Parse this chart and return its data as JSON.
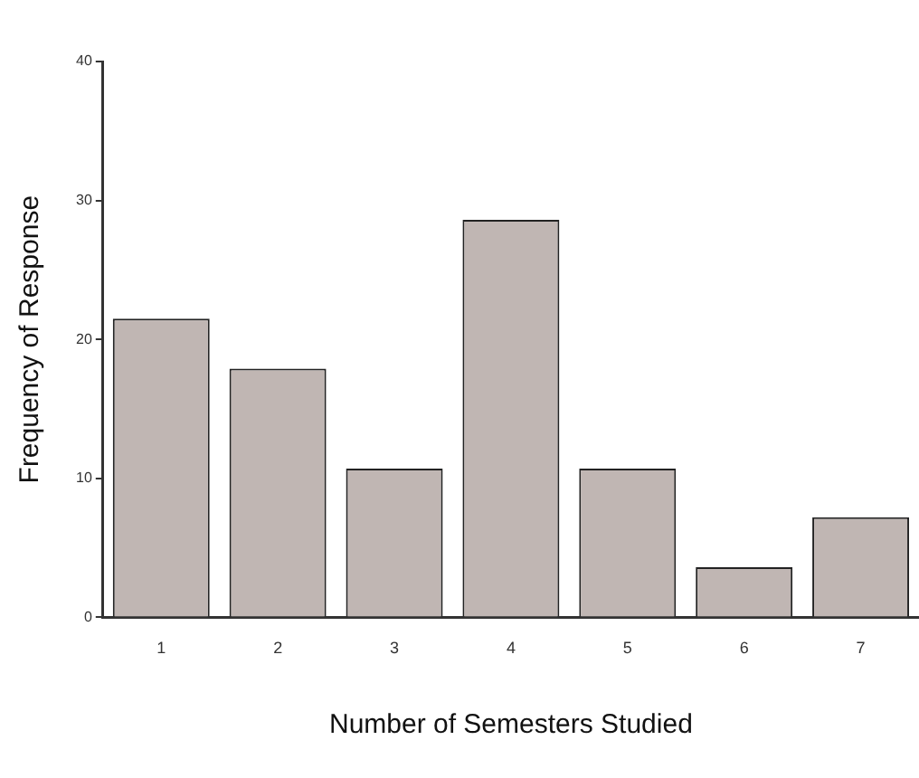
{
  "chart_data": {
    "type": "bar",
    "xlabel": "Number of Semesters Studied",
    "ylabel": "Frequency of Response",
    "categories": [
      "1",
      "2",
      "3",
      "4",
      "5",
      "6",
      "7"
    ],
    "values": [
      21.5,
      17.9,
      10.7,
      28.6,
      10.7,
      3.6,
      7.2
    ],
    "color": "#c0b6b3",
    "ylim": [
      0,
      40
    ],
    "yticks": [
      0,
      10,
      20,
      30,
      40
    ],
    "grid": false,
    "legend": false
  }
}
